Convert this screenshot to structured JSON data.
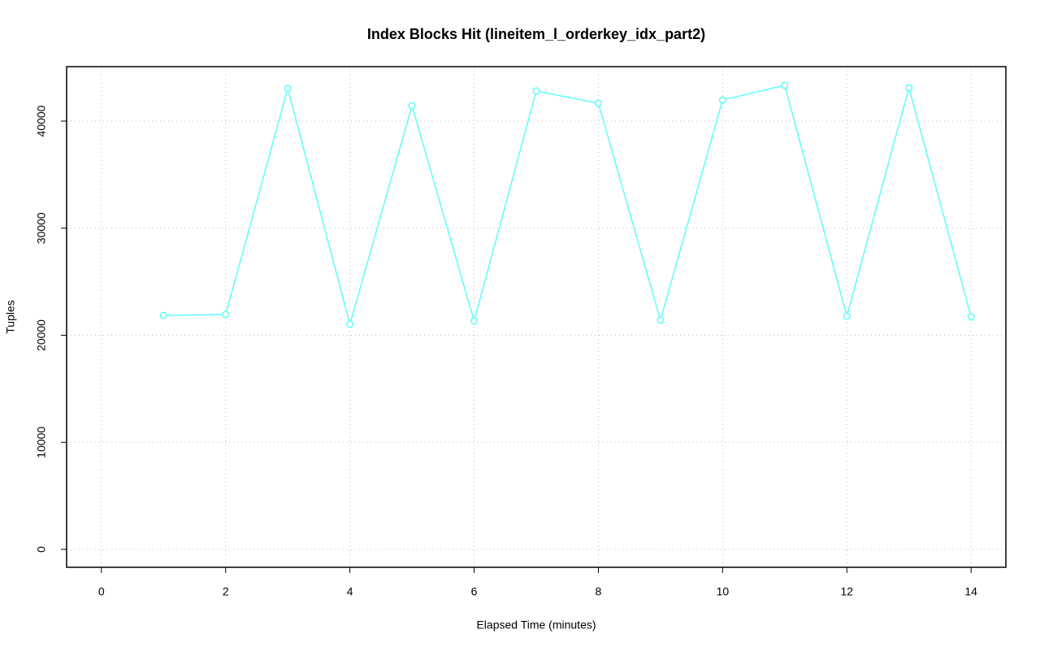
{
  "chart_data": {
    "type": "line",
    "title": "Index Blocks Hit (lineitem_l_orderkey_idx_part2)",
    "x_label": "Elapsed Time (minutes)",
    "y_label": "Tuples",
    "x": [
      1,
      2,
      3,
      4,
      5,
      6,
      7,
      8,
      9,
      10,
      11,
      12,
      13,
      14
    ],
    "values": [
      21860,
      21935,
      43036,
      21025,
      41442,
      21328,
      42808,
      41670,
      21404,
      41973,
      43340,
      21784,
      43112,
      21708
    ],
    "color": "#5ffcfc",
    "xlim": [
      -0.56,
      14.56
    ],
    "xticks": [
      0,
      2,
      4,
      6,
      8,
      10,
      12,
      14
    ],
    "ylim": [
      -1670,
      45085
    ],
    "yticks": [
      0,
      10000,
      20000,
      30000,
      40000
    ],
    "grid": true
  }
}
